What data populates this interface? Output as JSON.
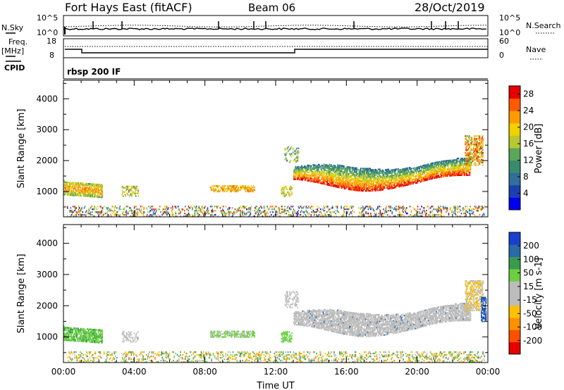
{
  "header": {
    "station": "Fort Hays East (fitACF)",
    "beam": "Beam 06",
    "date": "28/Oct/2019"
  },
  "status_panel": {
    "left_label_sky": "N.Sky",
    "left_ticks": [
      "10^5",
      "10^0"
    ],
    "right_ticks": [
      "10^5",
      "10^0"
    ],
    "right_label": "N.Search",
    "freq_label_1": "Freq.",
    "freq_label_2": "[MHz]",
    "freq_ticks": [
      "18",
      "8"
    ],
    "nave_ticks": [
      "60",
      "0"
    ],
    "nave_label": "Nave",
    "cpid_label": "CPID",
    "cpid_text": "rbsp 200 IF"
  },
  "colors": {
    "power_scale": [
      "#0000ee",
      "#1a3fb0",
      "#2f6f9a",
      "#3a8a70",
      "#5aa65a",
      "#b8c830",
      "#f0d000",
      "#ff9a00",
      "#ff5a00",
      "#e60000"
    ],
    "velocity_scale": [
      "#e60000",
      "#ff5000",
      "#ff9000",
      "#ffc000",
      "#bcbcbc",
      "#bcbcbc",
      "#6ad040",
      "#3a9a50",
      "#2a6aa8",
      "#1a3fd0"
    ]
  },
  "chart_data": [
    {
      "type": "heatmap",
      "name": "power",
      "ylabel": "Slant Range [km]",
      "yticks": [
        1000,
        2000,
        3000,
        4000
      ],
      "ylim": [
        180,
        4600
      ],
      "xticks": [
        "00:00",
        "04:00",
        "08:00",
        "12:00",
        "16:00",
        "20:00",
        "00:00"
      ],
      "xlim": [
        0,
        24
      ],
      "colorbar": {
        "label": "Power [dB]",
        "ticks": [
          "4",
          "8",
          "12",
          "16",
          "20",
          "24",
          "28"
        ],
        "range": [
          0,
          30
        ]
      }
    },
    {
      "type": "heatmap",
      "name": "velocity",
      "ylabel": "Slant Range [km]",
      "yticks": [
        1000,
        2000,
        3000,
        4000
      ],
      "ylim": [
        180,
        4600
      ],
      "xticks": [
        "00:00",
        "04:00",
        "08:00",
        "12:00",
        "16:00",
        "20:00",
        "00:00"
      ],
      "xlim": [
        0,
        24
      ],
      "xlabel": "Time UT",
      "colorbar": {
        "label": "Velocity [m s-1]",
        "ticks": [
          "200",
          "100",
          "50",
          "15",
          "-15",
          "-50",
          "-100",
          "-200"
        ]
      }
    }
  ]
}
